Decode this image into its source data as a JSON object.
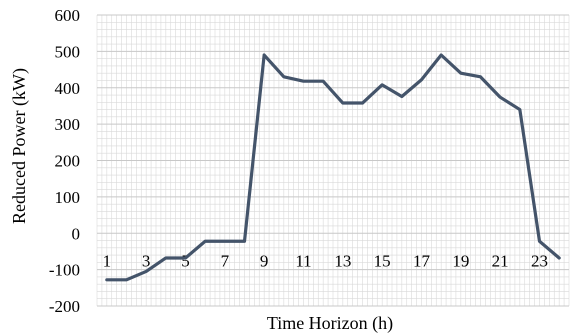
{
  "chart_data": {
    "type": "line",
    "title": "",
    "xlabel": "Time Horizon (h)",
    "ylabel": "Reduced Power (kW)",
    "x": [
      1,
      2,
      3,
      4,
      5,
      6,
      7,
      8,
      9,
      10,
      11,
      12,
      13,
      14,
      15,
      16,
      17,
      18,
      19,
      20,
      21,
      22,
      23,
      24
    ],
    "xticks": [
      1,
      3,
      5,
      7,
      9,
      11,
      13,
      15,
      17,
      19,
      21,
      23
    ],
    "yticks": [
      -200,
      -100,
      0,
      100,
      200,
      300,
      400,
      500,
      600
    ],
    "xlim": [
      0.5,
      24.5
    ],
    "ylim": [
      -200,
      600
    ],
    "grid": true,
    "series": [
      {
        "values": [
          -128,
          -128,
          -105,
          -68,
          -68,
          -22,
          -22,
          -22,
          490,
          430,
          418,
          418,
          358,
          358,
          408,
          376,
          422,
          490,
          440,
          430,
          374,
          340,
          -22,
          -68
        ]
      }
    ],
    "colors": {
      "line": "#44546a",
      "grid": "#d9d9d9"
    }
  }
}
